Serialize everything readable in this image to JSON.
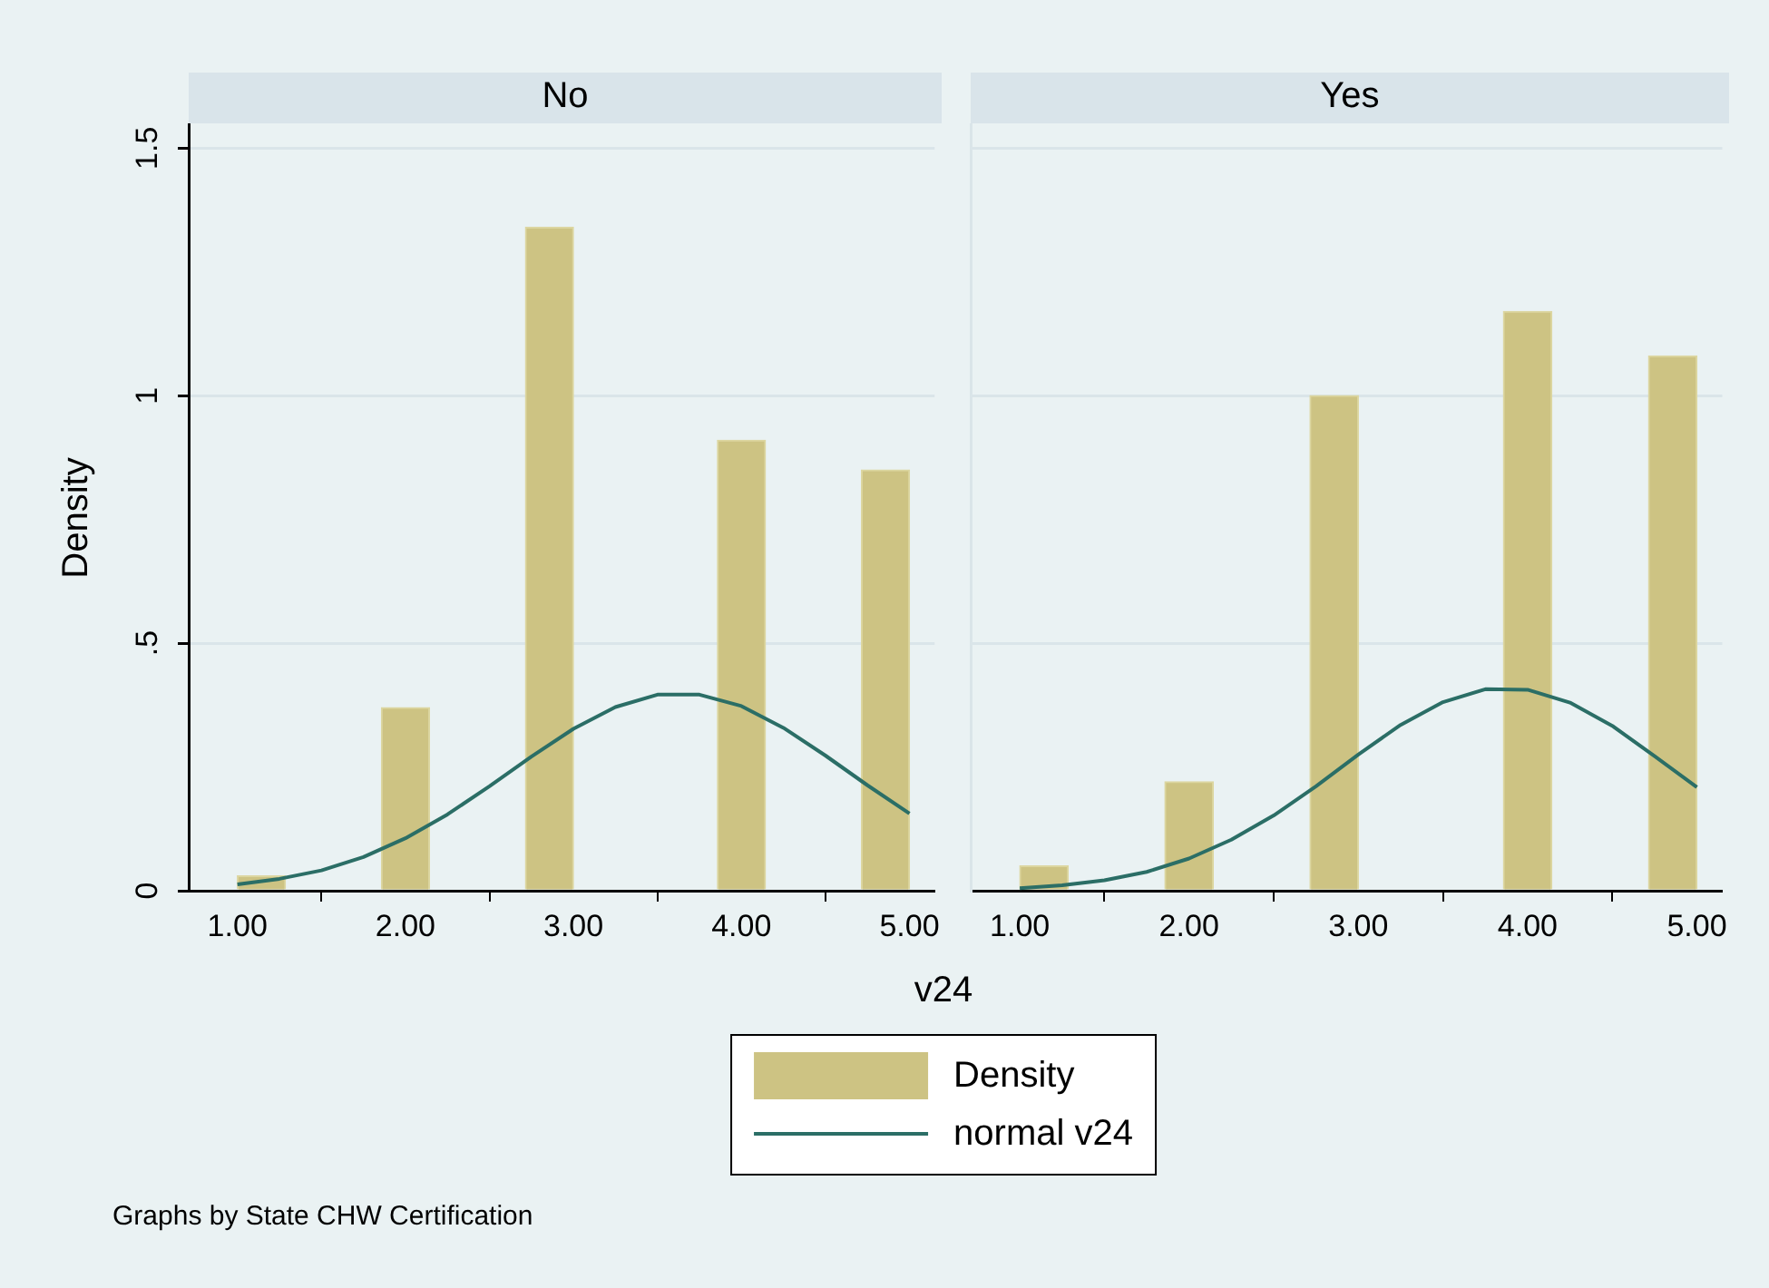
{
  "chart_data": [
    {
      "type": "histogram",
      "title": "No",
      "ylabel": "Density",
      "xlabel": "v24",
      "bins": [
        1,
        1.2857,
        1.5714,
        1.8571,
        2.1429,
        2.4286,
        2.7143,
        3.0,
        3.2857,
        3.5714,
        3.8571,
        4.1429,
        4.4286,
        4.7143,
        5.0
      ],
      "series": [
        {
          "name": "Density",
          "color": "#cdc383",
          "values": [
            0.03,
            0,
            0,
            0.37,
            0,
            0,
            1.34,
            0,
            0,
            0,
            0.91,
            0,
            0,
            0.85
          ]
        },
        {
          "type": "line",
          "name": "normal v24",
          "color": "#2b6e66",
          "x": [
            1,
            1.25,
            1.5,
            1.75,
            2,
            2.25,
            2.5,
            2.75,
            3,
            3.25,
            3.5,
            3.75,
            4,
            4.25,
            4.5,
            4.75,
            5
          ],
          "values": [
            0.013,
            0.024,
            0.041,
            0.068,
            0.106,
            0.154,
            0.211,
            0.271,
            0.327,
            0.371,
            0.396,
            0.396,
            0.373,
            0.329,
            0.273,
            0.213,
            0.156
          ]
        }
      ],
      "xlim": [
        0.71,
        5.15
      ],
      "xticks": [
        {
          "value": 1,
          "label": "1.00"
        },
        {
          "value": 2,
          "label": "2.00"
        },
        {
          "value": 3,
          "label": "3.00"
        },
        {
          "value": 4,
          "label": "4.00"
        },
        {
          "value": 5,
          "label": "5.00"
        }
      ],
      "ylim": [
        0,
        1.55
      ],
      "yticks": [
        {
          "value": 0,
          "label": "0"
        },
        {
          "value": 0.5,
          "label": ".5"
        },
        {
          "value": 1,
          "label": "1"
        },
        {
          "value": 1.5,
          "label": "1.5"
        }
      ],
      "grid": "y",
      "marker": "none",
      "legend": "bottom",
      "annotations": [
        "Graphs by State CHW Certification"
      ]
    },
    {
      "type": "histogram",
      "title": "Yes",
      "bins": [
        1,
        1.2857,
        1.5714,
        1.8571,
        2.1429,
        2.4286,
        2.7143,
        3.0,
        3.2857,
        3.5714,
        3.8571,
        4.1429,
        4.4286,
        4.7143,
        5.0
      ],
      "series": [
        {
          "color": "#cdc383",
          "values": [
            0.05,
            0,
            0,
            0.22,
            0,
            0,
            1.0,
            0,
            0,
            0,
            1.17,
            0,
            0,
            1.08
          ]
        },
        {
          "type": "line",
          "color": "#2b6e66",
          "x": [
            1,
            1.25,
            1.5,
            1.75,
            2,
            2.25,
            2.5,
            2.75,
            3,
            3.25,
            3.5,
            3.75,
            4,
            4.25,
            4.5,
            4.75,
            5
          ],
          "values": [
            0.005,
            0.011,
            0.021,
            0.038,
            0.065,
            0.103,
            0.152,
            0.211,
            0.275,
            0.335,
            0.381,
            0.407,
            0.406,
            0.38,
            0.333,
            0.272,
            0.209
          ]
        }
      ],
      "xlim": [
        0.71,
        5.15
      ],
      "xticks": [
        {
          "value": 1,
          "label": "1.00"
        },
        {
          "value": 2,
          "label": "2.00"
        },
        {
          "value": 3,
          "label": "3.00"
        },
        {
          "value": 4,
          "label": "4.00"
        },
        {
          "value": 5,
          "label": "5.00"
        }
      ],
      "ylim": [
        0,
        1.55
      ],
      "yticks": [
        0,
        0.5,
        1,
        1.5
      ],
      "grid": "y",
      "marker": "none",
      "legend": false,
      "tick_labels": "x"
    }
  ]
}
